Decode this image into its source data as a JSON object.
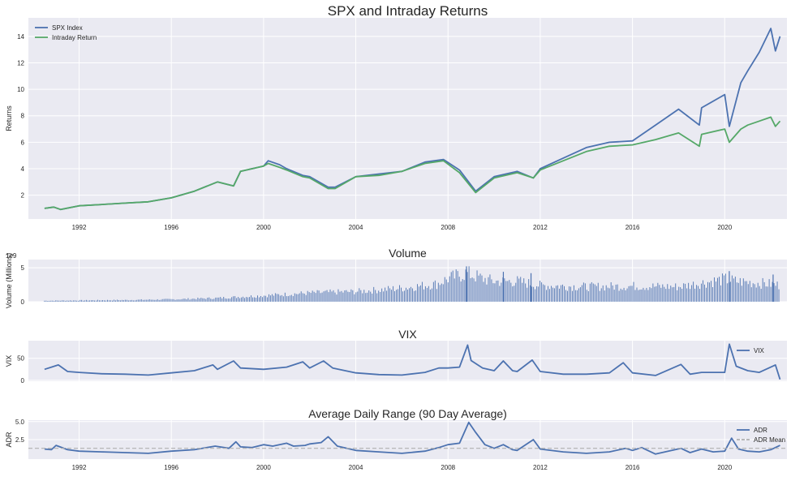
{
  "colors": {
    "panel_bg": "#eaeaf2",
    "grid": "#ffffff",
    "blue": "#4c72b0",
    "green": "#55a868",
    "mean_line": "#b0b0b0",
    "text": "#262626"
  },
  "chart_data": [
    {
      "type": "line",
      "title": "SPX and Intraday Returns",
      "ylabel": "Returns",
      "xlim": [
        1989.8,
        2022.7
      ],
      "ylim": [
        0.2,
        15.4
      ],
      "yticks": [
        2,
        4,
        6,
        8,
        10,
        12,
        14
      ],
      "xticks": [
        1992,
        1996,
        2000,
        2004,
        2008,
        2012,
        2016,
        2020
      ],
      "legend": "top-left",
      "series": [
        {
          "name": "SPX Index",
          "color": "#4c72b0",
          "x": [
            1990.5,
            1990.9,
            1991.2,
            1992,
            1993,
            1994,
            1995,
            1996,
            1997,
            1998,
            1998.7,
            1999,
            2000,
            2000.2,
            2000.7,
            2001,
            2001.7,
            2002,
            2002.8,
            2003.1,
            2004,
            2005,
            2006,
            2007,
            2007.8,
            2008.5,
            2009.2,
            2010,
            2011,
            2011.7,
            2012,
            2013,
            2014,
            2015,
            2016,
            2017,
            2018,
            2018.9,
            2019,
            2020,
            2020.2,
            2020.7,
            2021,
            2021.5,
            2022,
            2022.2,
            2022.4
          ],
          "y": [
            1.0,
            1.1,
            0.92,
            1.2,
            1.3,
            1.4,
            1.5,
            1.8,
            2.3,
            3.0,
            2.7,
            3.8,
            4.2,
            4.6,
            4.3,
            4.0,
            3.5,
            3.4,
            2.6,
            2.6,
            3.4,
            3.6,
            3.8,
            4.5,
            4.7,
            3.9,
            2.3,
            3.4,
            3.8,
            3.3,
            4.0,
            4.8,
            5.6,
            6.0,
            6.1,
            7.3,
            8.5,
            7.3,
            8.6,
            9.6,
            7.2,
            10.5,
            11.4,
            12.8,
            14.6,
            12.9,
            14.0
          ]
        },
        {
          "name": "Intraday Return",
          "color": "#55a868",
          "x": [
            1990.5,
            1990.9,
            1991.2,
            1992,
            1993,
            1994,
            1995,
            1996,
            1997,
            1998,
            1998.7,
            1999,
            2000,
            2000.2,
            2000.7,
            2001,
            2001.7,
            2002,
            2002.8,
            2003.1,
            2004,
            2005,
            2006,
            2007,
            2007.8,
            2008.5,
            2009.2,
            2010,
            2011,
            2011.7,
            2012,
            2013,
            2014,
            2015,
            2016,
            2017,
            2018,
            2018.9,
            2019,
            2020,
            2020.2,
            2020.7,
            2021,
            2021.5,
            2022,
            2022.2,
            2022.4
          ],
          "y": [
            1.0,
            1.1,
            0.92,
            1.2,
            1.3,
            1.4,
            1.5,
            1.8,
            2.3,
            3.0,
            2.7,
            3.8,
            4.2,
            4.4,
            4.1,
            3.9,
            3.4,
            3.3,
            2.5,
            2.5,
            3.4,
            3.5,
            3.8,
            4.4,
            4.6,
            3.7,
            2.2,
            3.3,
            3.7,
            3.3,
            3.9,
            4.6,
            5.3,
            5.7,
            5.8,
            6.2,
            6.7,
            5.7,
            6.6,
            7.0,
            6.0,
            7.0,
            7.3,
            7.6,
            7.9,
            7.2,
            7.6
          ]
        }
      ]
    },
    {
      "type": "bar",
      "title": "Volume",
      "ylabel": "Volume (Millions)",
      "offset_label": "1e9",
      "xlim": [
        1989.8,
        2022.7
      ],
      "ylim": [
        0,
        6.2
      ],
      "yticks": [
        0,
        5
      ],
      "color": "#4c72b0",
      "x": [
        1990.5,
        1992,
        1994,
        1996,
        1998,
        2000,
        2002,
        2004,
        2006,
        2007.5,
        2008,
        2008.8,
        2009.5,
        2010,
        2011,
        2012,
        2014,
        2016,
        2018,
        2020,
        2020.5,
        2022,
        2022.4
      ],
      "values": [
        0.15,
        0.2,
        0.25,
        0.35,
        0.55,
        0.9,
        1.3,
        1.5,
        2.0,
        2.6,
        3.4,
        4.2,
        3.4,
        3.0,
        3.0,
        2.4,
        2.2,
        2.3,
        2.2,
        3.3,
        3.0,
        2.6,
        2.4
      ],
      "peaks": [
        {
          "x": 2008.8,
          "value": 5.2
        },
        {
          "x": 2010.4,
          "value": 4.4
        },
        {
          "x": 2011.6,
          "value": 4.2
        },
        {
          "x": 2020.2,
          "value": 4.5
        },
        {
          "x": 2022.1,
          "value": 4.0
        }
      ]
    },
    {
      "type": "line",
      "title": "VIX",
      "ylabel": "VIX",
      "xlim": [
        1989.8,
        2022.7
      ],
      "ylim": [
        -2,
        90
      ],
      "yticks": [
        0,
        50
      ],
      "legend": "top-right",
      "series": [
        {
          "name": "VIX",
          "color": "#4c72b0",
          "x": [
            1990.5,
            1990.8,
            1991.1,
            1991.5,
            1992,
            1993,
            1994,
            1995,
            1996,
            1997,
            1997.8,
            1998,
            1998.7,
            1999,
            2000,
            2001,
            2001.7,
            2002,
            2002.6,
            2003,
            2004,
            2005,
            2006,
            2007,
            2007.6,
            2008,
            2008.5,
            2008.85,
            2009,
            2009.5,
            2010,
            2010.4,
            2010.8,
            2011,
            2011.65,
            2012,
            2013,
            2014,
            2015,
            2015.6,
            2016,
            2017,
            2018.1,
            2018.5,
            2019,
            2020,
            2020.2,
            2020.5,
            2021,
            2021.5,
            2022,
            2022.2,
            2022.4
          ],
          "y": [
            25,
            30,
            35,
            20,
            18,
            15,
            14,
            12,
            17,
            22,
            35,
            25,
            44,
            28,
            25,
            30,
            42,
            28,
            44,
            28,
            17,
            13,
            12,
            18,
            28,
            28,
            30,
            80,
            45,
            28,
            22,
            44,
            22,
            20,
            46,
            20,
            14,
            14,
            17,
            40,
            17,
            11,
            36,
            14,
            18,
            18,
            82,
            32,
            22,
            18,
            30,
            35,
            2
          ]
        }
      ]
    },
    {
      "type": "line",
      "title": "Average Daily Range (90 Day Average)",
      "ylabel": "ADR",
      "xlim": [
        1989.8,
        2022.7
      ],
      "ylim": [
        -0.2,
        5.2
      ],
      "yticks": [
        2.5,
        5.0
      ],
      "ytick_labels": [
        "2.5",
        "5.0"
      ],
      "legend": "top-right",
      "series": [
        {
          "name": "ADR",
          "color": "#4c72b0",
          "x": [
            1990.5,
            1990.8,
            1991,
            1991.5,
            1992,
            1993,
            1994,
            1995,
            1996,
            1997,
            1997.9,
            1998.5,
            1998.8,
            1999,
            1999.5,
            2000,
            2000.4,
            2001,
            2001.3,
            2001.8,
            2002,
            2002.5,
            2002.8,
            2003.2,
            2004,
            2005,
            2006,
            2007,
            2007.6,
            2008,
            2008.5,
            2008.9,
            2009.2,
            2009.6,
            2010,
            2010.4,
            2010.8,
            2011,
            2011.7,
            2012,
            2013,
            2014,
            2015,
            2015.7,
            2016,
            2016.4,
            2017,
            2018.1,
            2018.5,
            2019,
            2019.5,
            2020,
            2020.3,
            2020.6,
            2021,
            2021.5,
            2022,
            2022.4
          ],
          "y": [
            1.2,
            1.1,
            1.7,
            1.1,
            0.9,
            0.8,
            0.7,
            0.6,
            0.9,
            1.1,
            1.6,
            1.3,
            2.2,
            1.5,
            1.4,
            1.8,
            1.6,
            2.0,
            1.6,
            1.7,
            1.9,
            2.1,
            2.9,
            1.6,
            1.0,
            0.8,
            0.6,
            0.9,
            1.4,
            1.8,
            2.0,
            4.9,
            3.5,
            1.8,
            1.3,
            1.8,
            1.1,
            1.0,
            2.5,
            1.2,
            0.8,
            0.6,
            0.8,
            1.3,
            1.0,
            1.4,
            0.5,
            1.3,
            0.7,
            1.2,
            0.8,
            0.9,
            2.7,
            1.2,
            0.9,
            0.8,
            1.1,
            1.7
          ]
        },
        {
          "name": "ADR Mean",
          "color": "#b0b0b0",
          "dashed": true,
          "x": [
            1989.8,
            2022.7
          ],
          "y": [
            1.3,
            1.3
          ]
        }
      ]
    }
  ]
}
